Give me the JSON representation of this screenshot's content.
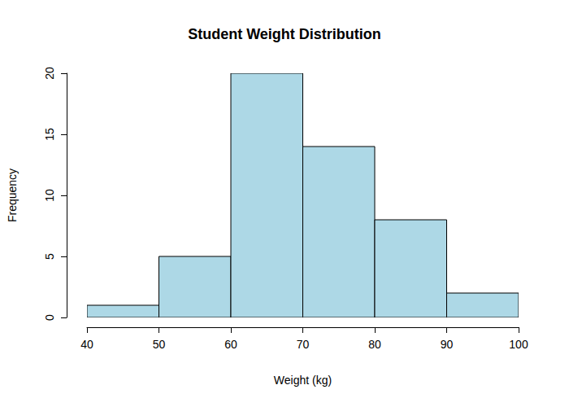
{
  "chart_data": {
    "type": "histogram",
    "title": "Student Weight Distribution",
    "x_label": "Weight (kg)",
    "y_label": "Frequency",
    "bins": [
      40,
      50,
      60,
      70,
      80,
      90,
      100
    ],
    "counts": [
      1,
      5,
      20,
      14,
      8,
      2
    ],
    "color": "#add8e6",
    "xlim": [
      40,
      100
    ],
    "xticks": [
      40,
      50,
      60,
      70,
      80,
      90,
      100
    ],
    "ylim": [
      0,
      20
    ],
    "yticks": [
      0,
      5,
      10,
      15,
      20
    ],
    "grid": false
  }
}
